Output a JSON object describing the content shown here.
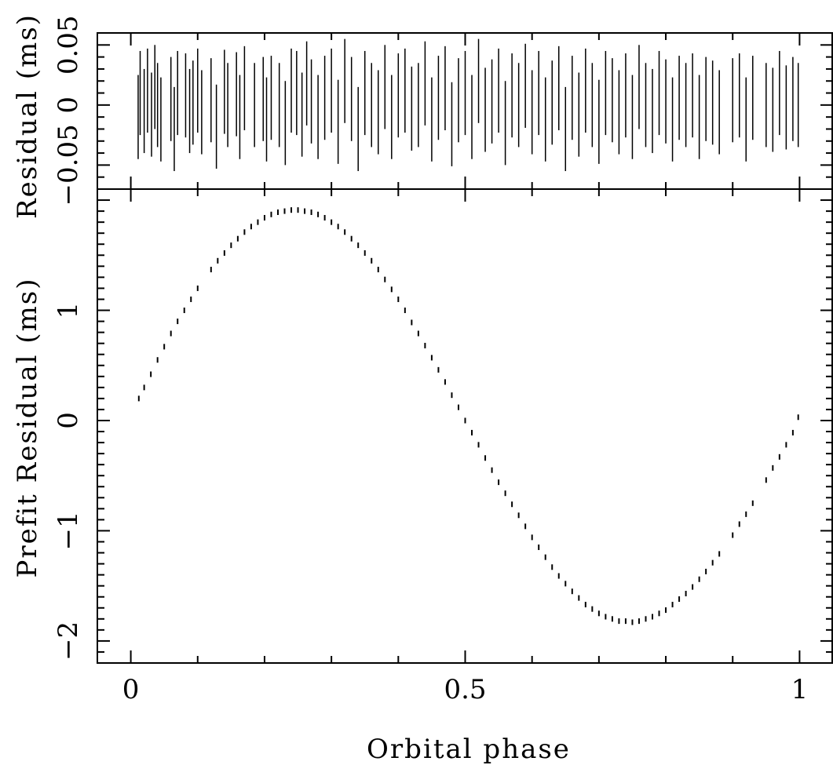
{
  "chart_data": [
    {
      "panel": "top",
      "type": "errorbar",
      "ylabel": "Residual (ms)",
      "xlim": [
        -0.05,
        1.05
      ],
      "ylim": [
        -0.07,
        0.06
      ],
      "yticks": [
        -0.05,
        0,
        0.05
      ],
      "ytick_labels": [
        "−0.05",
        "0",
        "0.05"
      ],
      "description_of_data": "Post-fit timing residuals with error bars, scattered around zero; each point has an error bar of roughly ±0.04 ms.",
      "x": [
        0.011,
        0.014,
        0.02,
        0.025,
        0.031,
        0.036,
        0.04,
        0.045,
        0.06,
        0.065,
        0.07,
        0.082,
        0.088,
        0.093,
        0.1,
        0.106,
        0.12,
        0.128,
        0.14,
        0.145,
        0.158,
        0.163,
        0.17,
        0.185,
        0.198,
        0.203,
        0.21,
        0.222,
        0.231,
        0.24,
        0.248,
        0.256,
        0.263,
        0.27,
        0.28,
        0.29,
        0.3,
        0.31,
        0.32,
        0.33,
        0.34,
        0.35,
        0.36,
        0.37,
        0.38,
        0.39,
        0.4,
        0.41,
        0.42,
        0.43,
        0.44,
        0.45,
        0.46,
        0.47,
        0.48,
        0.49,
        0.5,
        0.51,
        0.52,
        0.53,
        0.54,
        0.55,
        0.56,
        0.57,
        0.58,
        0.59,
        0.6,
        0.61,
        0.62,
        0.63,
        0.64,
        0.65,
        0.66,
        0.67,
        0.68,
        0.69,
        0.7,
        0.71,
        0.72,
        0.73,
        0.74,
        0.75,
        0.76,
        0.77,
        0.78,
        0.79,
        0.8,
        0.81,
        0.82,
        0.83,
        0.84,
        0.85,
        0.86,
        0.87,
        0.88,
        0.9,
        0.91,
        0.92,
        0.93,
        0.95,
        0.96,
        0.97,
        0.98,
        0.99,
        0.998
      ],
      "y": [
        -0.01,
        0.01,
        -0.005,
        0.012,
        -0.008,
        0.015,
        0.0,
        -0.012,
        0.005,
        -0.02,
        0.01,
        0.008,
        -0.005,
        0.002,
        0.012,
        -0.006,
        0.004,
        -0.018,
        0.011,
        0.0,
        0.009,
        -0.01,
        0.014,
        0.0,
        0.005,
        -0.012,
        0.006,
        0.0,
        -0.015,
        0.012,
        0.01,
        -0.008,
        0.018,
        0.003,
        -0.01,
        0.006,
        0.012,
        -0.014,
        0.02,
        0.005,
        -0.02,
        0.01,
        0.0,
        -0.006,
        0.015,
        -0.01,
        0.008,
        0.012,
        -0.003,
        0.0,
        0.018,
        -0.012,
        0.006,
        0.014,
        -0.016,
        0.004,
        0.01,
        -0.01,
        0.02,
        -0.004,
        0.003,
        0.012,
        -0.015,
        0.008,
        0.0,
        0.016,
        -0.006,
        0.01,
        -0.012,
        0.002,
        0.014,
        -0.02,
        0.006,
        -0.008,
        0.012,
        0.0,
        -0.014,
        0.01,
        0.004,
        -0.006,
        0.008,
        -0.01,
        0.015,
        0.0,
        -0.005,
        0.01,
        0.003,
        -0.012,
        0.006,
        0.0,
        0.008,
        -0.01,
        0.005,
        0.002,
        -0.006,
        0.004,
        0.008,
        -0.012,
        0.006,
        0.0,
        -0.004,
        0.01,
        -0.002,
        0.005,
        0.0
      ],
      "yerr": 0.035
    },
    {
      "panel": "bottom",
      "type": "scatter",
      "xlabel": "Orbital phase",
      "ylabel": "Prefit Residual (ms)",
      "xlim": [
        -0.05,
        1.05
      ],
      "ylim": [
        -2.2,
        2.1
      ],
      "xticks": [
        0,
        0.5,
        1
      ],
      "xtick_labels": [
        "0",
        "0.5",
        "1"
      ],
      "yticks": [
        -2,
        -1,
        0,
        1
      ],
      "ytick_labels": [
        "−2",
        "−1",
        "0",
        "1"
      ],
      "description_of_data": "Pre-fit timing residuals following a sinusoid in orbital phase: maximum about 1.9 ms near phase 0.25, minimum about −1.8 ms near phase 0.76, crossing zero near phases 0.0, 0.5 and 1.0.",
      "x": [
        0.012,
        0.02,
        0.03,
        0.04,
        0.05,
        0.06,
        0.07,
        0.08,
        0.09,
        0.1,
        0.12,
        0.13,
        0.14,
        0.15,
        0.16,
        0.17,
        0.18,
        0.19,
        0.2,
        0.21,
        0.22,
        0.23,
        0.24,
        0.25,
        0.26,
        0.27,
        0.28,
        0.29,
        0.3,
        0.31,
        0.32,
        0.33,
        0.34,
        0.35,
        0.36,
        0.37,
        0.38,
        0.39,
        0.4,
        0.41,
        0.42,
        0.43,
        0.44,
        0.45,
        0.46,
        0.47,
        0.48,
        0.49,
        0.5,
        0.51,
        0.52,
        0.53,
        0.54,
        0.55,
        0.56,
        0.57,
        0.58,
        0.59,
        0.6,
        0.61,
        0.62,
        0.63,
        0.64,
        0.65,
        0.66,
        0.67,
        0.68,
        0.69,
        0.7,
        0.71,
        0.72,
        0.73,
        0.74,
        0.75,
        0.76,
        0.77,
        0.78,
        0.79,
        0.8,
        0.81,
        0.82,
        0.83,
        0.84,
        0.85,
        0.86,
        0.87,
        0.88,
        0.9,
        0.91,
        0.92,
        0.93,
        0.95,
        0.96,
        0.97,
        0.98,
        0.99,
        0.998
      ],
      "y": [
        0.2,
        0.3,
        0.42,
        0.55,
        0.67,
        0.79,
        0.9,
        1.0,
        1.1,
        1.2,
        1.37,
        1.45,
        1.52,
        1.59,
        1.65,
        1.71,
        1.76,
        1.8,
        1.84,
        1.87,
        1.89,
        1.9,
        1.91,
        1.91,
        1.9,
        1.89,
        1.87,
        1.84,
        1.8,
        1.76,
        1.71,
        1.65,
        1.59,
        1.52,
        1.45,
        1.37,
        1.28,
        1.19,
        1.1,
        1.0,
        0.89,
        0.79,
        0.68,
        0.57,
        0.46,
        0.35,
        0.23,
        0.12,
        0.0,
        -0.11,
        -0.22,
        -0.34,
        -0.45,
        -0.56,
        -0.66,
        -0.76,
        -0.86,
        -0.96,
        -1.06,
        -1.15,
        -1.24,
        -1.33,
        -1.41,
        -1.48,
        -1.55,
        -1.61,
        -1.67,
        -1.71,
        -1.75,
        -1.78,
        -1.8,
        -1.82,
        -1.82,
        -1.83,
        -1.82,
        -1.8,
        -1.78,
        -1.75,
        -1.72,
        -1.67,
        -1.62,
        -1.57,
        -1.51,
        -1.44,
        -1.37,
        -1.29,
        -1.21,
        -1.04,
        -0.94,
        -0.85,
        -0.75,
        -0.54,
        -0.43,
        -0.33,
        -0.22,
        -0.11,
        0.03
      ],
      "yerr": 0.025
    }
  ]
}
